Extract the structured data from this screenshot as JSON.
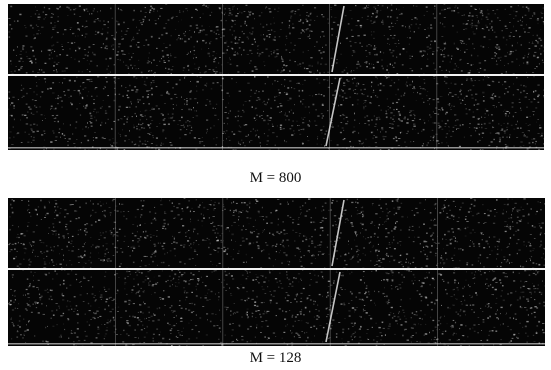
{
  "figures": [
    {
      "caption": "M = 800",
      "noise_seed": 17
    },
    {
      "caption": "M = 128",
      "noise_seed": 91
    }
  ],
  "colors": {
    "panel_background": "#050505",
    "speckle": "#e6e6e6",
    "separator": "#f2f2f2",
    "caption_text": "#111111",
    "page_background": "#ffffff"
  }
}
